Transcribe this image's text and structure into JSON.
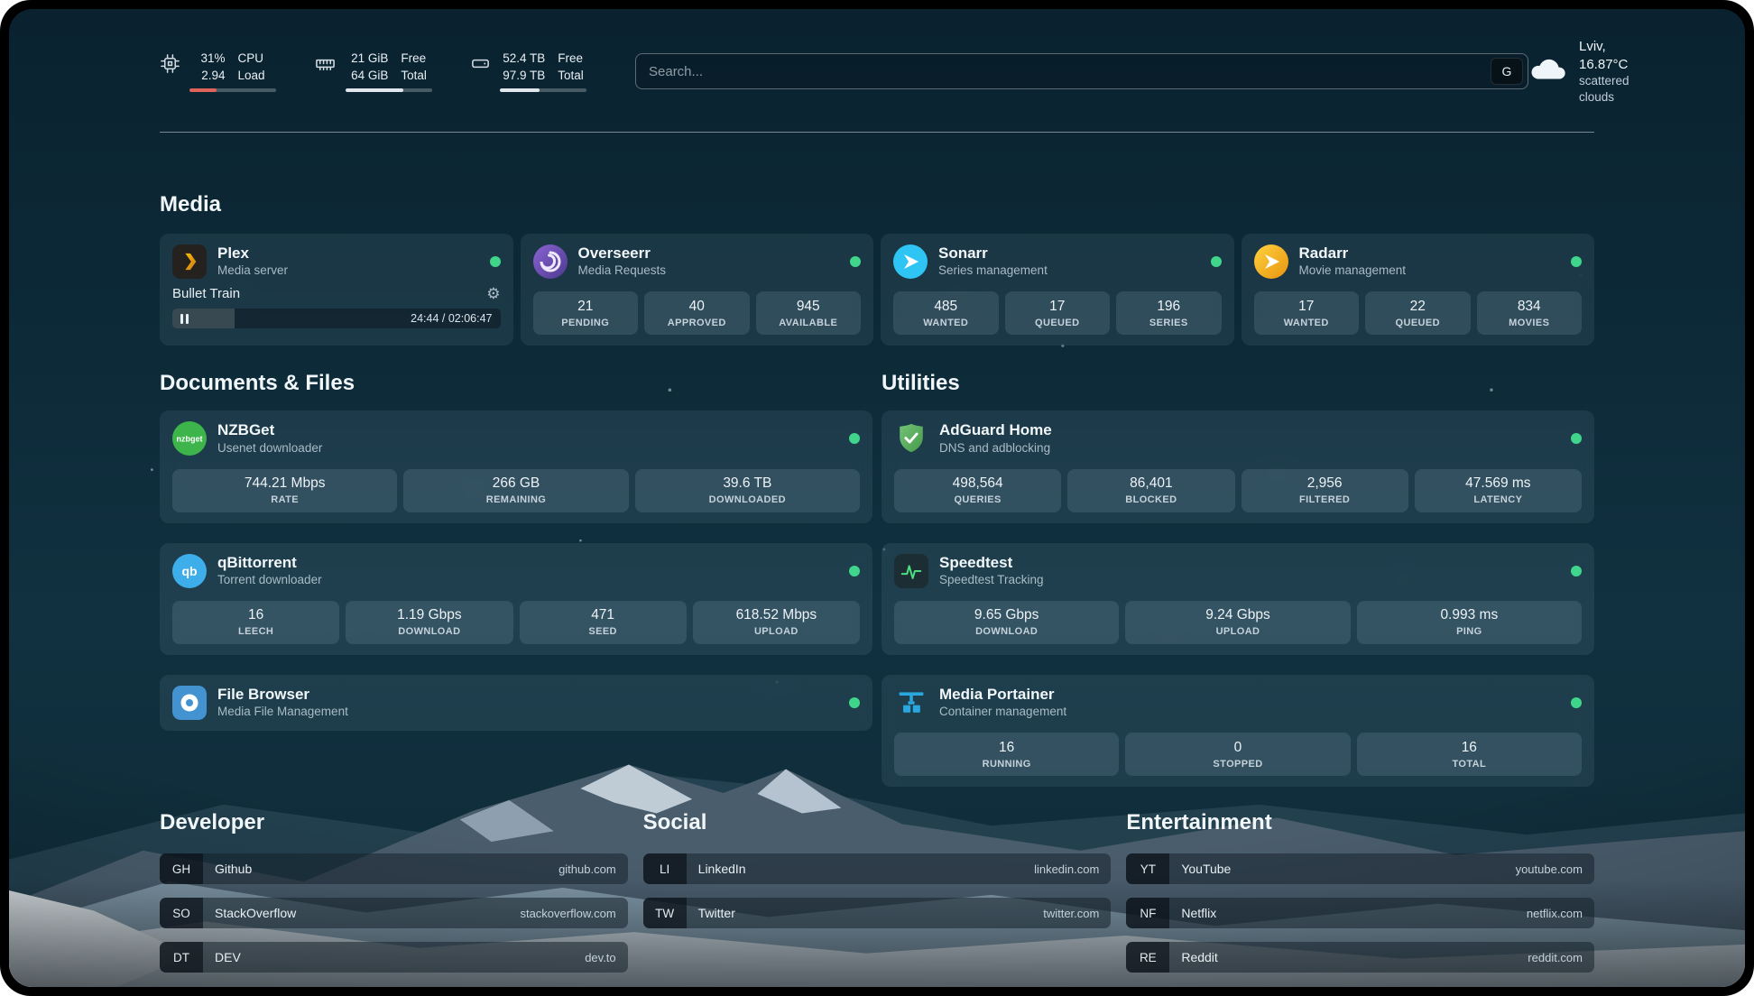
{
  "header": {
    "cpu": {
      "values": [
        "31%",
        "2.94"
      ],
      "labels": [
        "CPU",
        "Load"
      ],
      "percent": 31
    },
    "memory": {
      "values": [
        "21 GiB",
        "64 GiB"
      ],
      "labels": [
        "Free",
        "Total"
      ],
      "percent": 67
    },
    "disk": {
      "values": [
        "52.4 TB",
        "97.9 TB"
      ],
      "labels": [
        "Free",
        "Total"
      ],
      "percent": 46
    },
    "search": {
      "placeholder": "Search...",
      "provider": "G"
    },
    "weather": {
      "location": "Lviv, 16.87°C",
      "condition": "scattered clouds"
    }
  },
  "sections": {
    "media": {
      "title": "Media",
      "cards": [
        {
          "title": "Plex",
          "subtitle": "Media server",
          "now_playing": {
            "title": "Bullet Train",
            "time": "24:44 / 02:06:47",
            "progress_percent": 19
          }
        },
        {
          "title": "Overseerr",
          "subtitle": "Media Requests",
          "stats": [
            {
              "value": "21",
              "label": "PENDING"
            },
            {
              "value": "40",
              "label": "APPROVED"
            },
            {
              "value": "945",
              "label": "AVAILABLE"
            }
          ]
        },
        {
          "title": "Sonarr",
          "subtitle": "Series management",
          "stats": [
            {
              "value": "485",
              "label": "WANTED"
            },
            {
              "value": "17",
              "label": "QUEUED"
            },
            {
              "value": "196",
              "label": "SERIES"
            }
          ]
        },
        {
          "title": "Radarr",
          "subtitle": "Movie management",
          "stats": [
            {
              "value": "17",
              "label": "WANTED"
            },
            {
              "value": "22",
              "label": "QUEUED"
            },
            {
              "value": "834",
              "label": "MOVIES"
            }
          ]
        }
      ]
    },
    "documents": {
      "title": "Documents & Files",
      "cards": [
        {
          "title": "NZBGet",
          "subtitle": "Usenet downloader",
          "stats": [
            {
              "value": "744.21 Mbps",
              "label": "RATE"
            },
            {
              "value": "266 GB",
              "label": "REMAINING"
            },
            {
              "value": "39.6 TB",
              "label": "DOWNLOADED"
            }
          ]
        },
        {
          "title": "qBittorrent",
          "subtitle": "Torrent downloader",
          "stats": [
            {
              "value": "16",
              "label": "LEECH"
            },
            {
              "value": "1.19 Gbps",
              "label": "DOWNLOAD"
            },
            {
              "value": "471",
              "label": "SEED"
            },
            {
              "value": "618.52 Mbps",
              "label": "UPLOAD"
            }
          ]
        },
        {
          "title": "File Browser",
          "subtitle": "Media File Management"
        }
      ]
    },
    "utilities": {
      "title": "Utilities",
      "cards": [
        {
          "title": "AdGuard Home",
          "subtitle": "DNS and adblocking",
          "stats": [
            {
              "value": "498,564",
              "label": "QUERIES"
            },
            {
              "value": "86,401",
              "label": "BLOCKED"
            },
            {
              "value": "2,956",
              "label": "FILTERED"
            },
            {
              "value": "47.569 ms",
              "label": "LATENCY"
            }
          ]
        },
        {
          "title": "Speedtest",
          "subtitle": "Speedtest Tracking",
          "stats": [
            {
              "value": "9.65 Gbps",
              "label": "DOWNLOAD"
            },
            {
              "value": "9.24 Gbps",
              "label": "UPLOAD"
            },
            {
              "value": "0.993 ms",
              "label": "PING"
            }
          ]
        },
        {
          "title": "Media Portainer",
          "subtitle": "Container management",
          "stats": [
            {
              "value": "16",
              "label": "RUNNING"
            },
            {
              "value": "0",
              "label": "STOPPED"
            },
            {
              "value": "16",
              "label": "TOTAL"
            }
          ]
        }
      ]
    },
    "bookmarks": [
      {
        "title": "Developer",
        "links": [
          {
            "abbr": "GH",
            "name": "Github",
            "domain": "github.com"
          },
          {
            "abbr": "SO",
            "name": "StackOverflow",
            "domain": "stackoverflow.com"
          },
          {
            "abbr": "DT",
            "name": "DEV",
            "domain": "dev.to"
          }
        ]
      },
      {
        "title": "Social",
        "links": [
          {
            "abbr": "LI",
            "name": "LinkedIn",
            "domain": "linkedin.com"
          },
          {
            "abbr": "TW",
            "name": "Twitter",
            "domain": "twitter.com"
          }
        ]
      },
      {
        "title": "Entertainment",
        "links": [
          {
            "abbr": "YT",
            "name": "YouTube",
            "domain": "youtube.com"
          },
          {
            "abbr": "NF",
            "name": "Netflix",
            "domain": "netflix.com"
          },
          {
            "abbr": "RE",
            "name": "Reddit",
            "domain": "reddit.com"
          }
        ]
      }
    ]
  },
  "colors": {
    "status_ok": "#3fd68c",
    "cpu_bar": "#e0635a",
    "bar_fill": "#dfe7ec"
  }
}
